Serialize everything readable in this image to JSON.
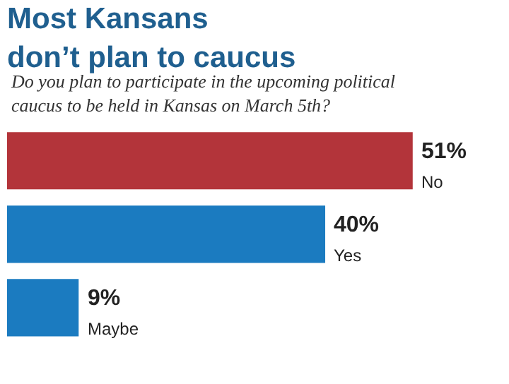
{
  "chart_data": {
    "type": "bar",
    "orientation": "horizontal",
    "title": "Most Kansans\ndon’t plan to caucus",
    "subtitle": "Do you plan to participate in the upcoming political caucus to be held in Kansas on March 5th?",
    "categories": [
      "No",
      "Yes",
      "Maybe"
    ],
    "values": [
      51,
      40,
      9
    ],
    "colors": [
      "#b3343a",
      "#1b7bc0",
      "#1b7bc0"
    ],
    "value_labels": [
      "51%",
      "40%",
      "9%"
    ]
  }
}
